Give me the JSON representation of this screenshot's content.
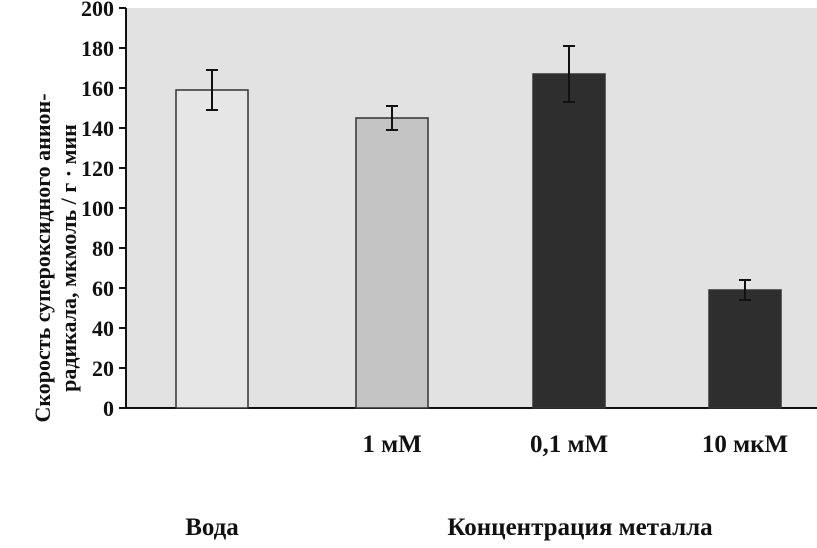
{
  "chart_data": {
    "type": "bar",
    "categories": [
      "",
      "1 мМ",
      "0,1 мМ",
      "10 мкМ"
    ],
    "values": [
      159,
      145,
      167,
      59
    ],
    "errors": [
      10,
      6,
      14,
      5
    ],
    "ylim": [
      0,
      200
    ],
    "yticks": [
      0,
      20,
      40,
      60,
      80,
      100,
      120,
      140,
      160,
      180,
      200
    ],
    "ylabel_line1": "Скорость супероксидного анион-",
    "ylabel_line2": "радикала, мкмоль / г · мин",
    "group_label_left": "Вода",
    "group_label_right": "Концентрация металла",
    "bar_colors": [
      "#e6e6e6",
      "#c4c4c4",
      "#2e2e2e",
      "#2e2e2e"
    ],
    "background_color": "#e2e2e2",
    "grid": false
  }
}
